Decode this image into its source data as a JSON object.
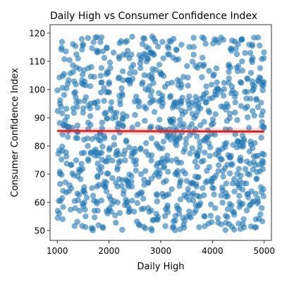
{
  "chart_data": {
    "type": "scatter",
    "title": "Daily High vs Consumer Confidence Index",
    "xlabel": "Daily High",
    "ylabel": "Consumer Confidence Index",
    "xlim": [
      860,
      5140
    ],
    "ylim": [
      46.5,
      123.0
    ],
    "xticks": [
      1000,
      2000,
      3000,
      4000,
      5000
    ],
    "yticks": [
      50,
      60,
      70,
      80,
      90,
      100,
      110,
      120
    ],
    "grid": false,
    "legend": "none",
    "point_color": "#1f77b4",
    "point_alpha": 0.6,
    "trend_color": "#d62728",
    "trend_line": {
      "x": [
        1000,
        5000
      ],
      "y": [
        85.3,
        85.1
      ]
    },
    "point_count": 1000,
    "sample_seed": 20240611,
    "x_range": [
      1000,
      5000
    ],
    "y_range": [
      50,
      119
    ]
  }
}
